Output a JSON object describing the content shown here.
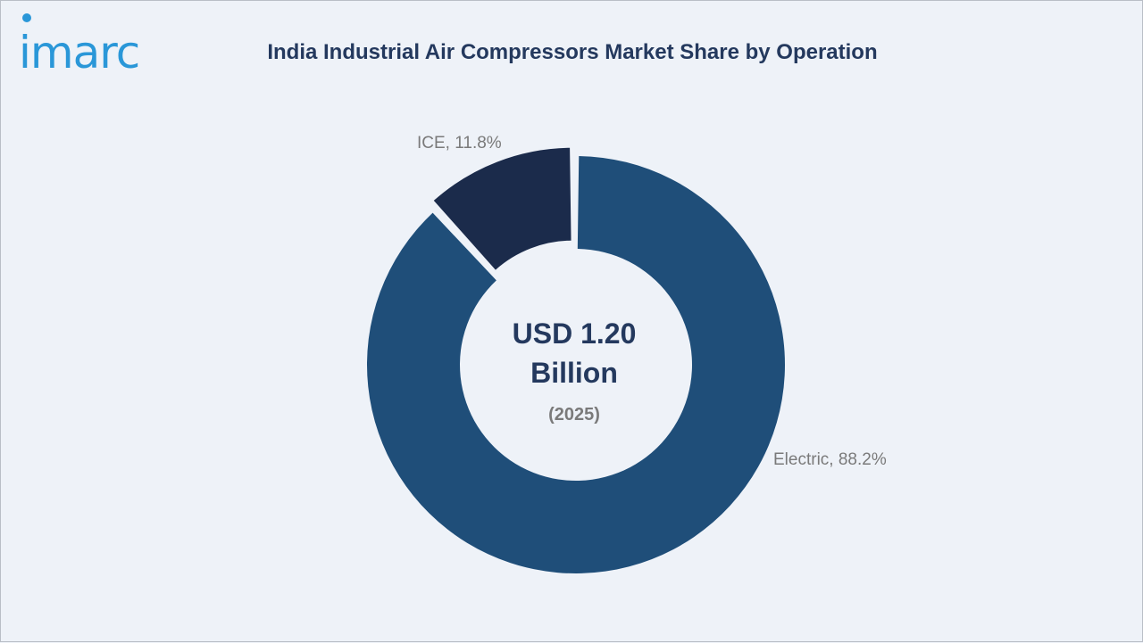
{
  "brand": {
    "logo_text": "imarc"
  },
  "colors": {
    "background": "#eef2f8",
    "electric": "#1f4e79",
    "ice": "#1b2b4b",
    "title": "#24395e",
    "label": "#7a7a7a",
    "logo": "#2a97d8"
  },
  "chart_data": {
    "type": "pie",
    "title": "India Industrial Air Compressors Market Share by Operation",
    "variant": "donut",
    "center_value": "USD 1.20",
    "center_unit": "Billion",
    "center_year": "(2025)",
    "slices": [
      {
        "label": "Electric",
        "value": 88.2,
        "display": "Electric, 88.2%",
        "color": "#1f4e79"
      },
      {
        "label": "ICE",
        "value": 11.8,
        "display": "ICE, 11.8%",
        "color": "#1b2b4b",
        "exploded": true
      }
    ]
  }
}
